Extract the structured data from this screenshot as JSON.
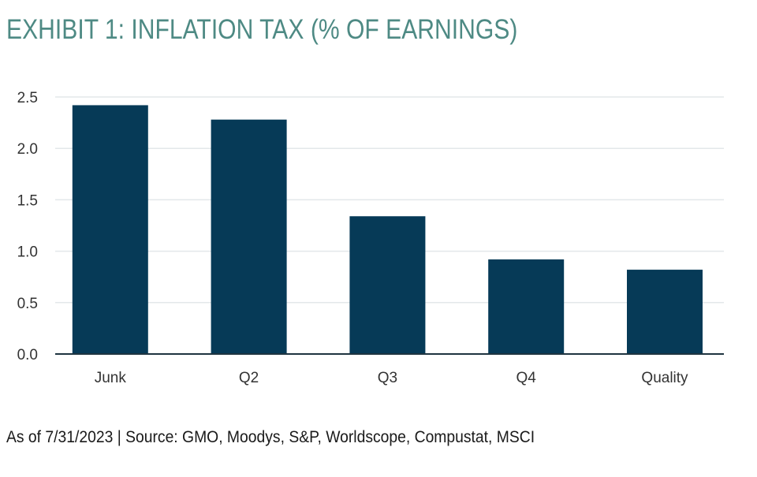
{
  "chart_data": {
    "type": "bar",
    "title": "EXHIBIT 1: INFLATION TAX (% OF EARNINGS)",
    "xlabel": "",
    "ylabel": "",
    "categories": [
      "Junk",
      "Q2",
      "Q3",
      "Q4",
      "Quality"
    ],
    "values": [
      2.42,
      2.28,
      1.34,
      0.92,
      0.82
    ],
    "ylim": [
      0,
      2.5
    ],
    "yticks": [
      "0.0",
      "0.5",
      "1.0",
      "1.5",
      "2.0",
      "2.5"
    ],
    "grid": true,
    "legend": "none",
    "bar_color": "#063a57",
    "footnote": "As of 7/31/2023 | Source: GMO, Moodys, S&P, Worldscope, Compustat, MSCI"
  }
}
